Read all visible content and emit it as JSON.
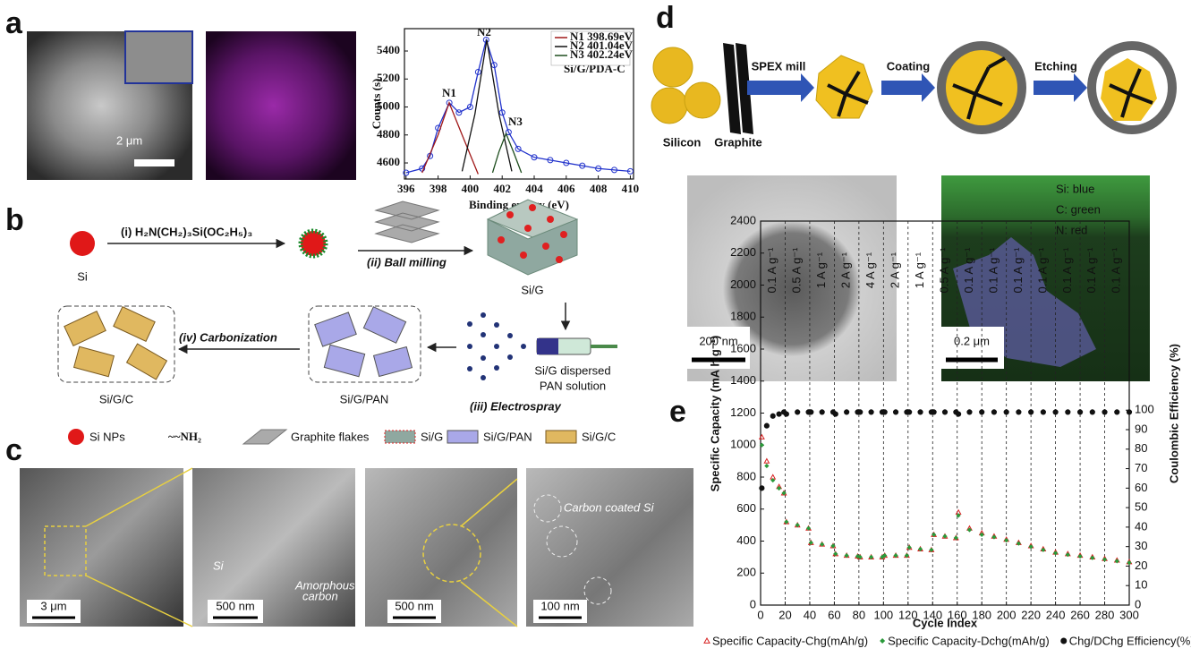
{
  "panel_a": {
    "label": "a",
    "scale_bar": "2 μm",
    "xps": {
      "type": "line",
      "xlim": [
        395.9,
        410.2
      ],
      "ylim": [
        4485,
        5560
      ],
      "xticks": [
        396,
        398,
        400,
        402,
        404,
        406,
        408,
        410
      ],
      "yticks": [
        4600,
        4800,
        5000,
        5200,
        5400
      ],
      "xlabel": "Binding energy (eV)",
      "ylabel": "Counts (s)",
      "inset_text": "Si/G/PDA-C",
      "annotations": [
        "N1",
        "N2",
        "N3"
      ],
      "legend": "upper right",
      "series": [
        {
          "color": "#2233cc",
          "marker": "circle",
          "line": true,
          "x": [
            396,
            397,
            397.5,
            398,
            398.7,
            399.3,
            400,
            400.5,
            401,
            401.5,
            402,
            402.4,
            403,
            404,
            405,
            406,
            407,
            408,
            409,
            410
          ],
          "values": [
            4530,
            4560,
            4650,
            4850,
            5030,
            4960,
            5000,
            5250,
            5480,
            5300,
            4960,
            4820,
            4700,
            4640,
            4620,
            4600,
            4580,
            4560,
            4550,
            4540
          ]
        },
        {
          "name": "N1 398.69eV",
          "color": "#a01818",
          "line": true,
          "x": [
            397,
            398,
            398.69,
            399.5,
            400.5
          ],
          "values": [
            4530,
            4800,
            5030,
            4800,
            4520
          ]
        },
        {
          "name": "N2 401.04eV",
          "color": "#111111",
          "line": true,
          "x": [
            399.5,
            400.3,
            401.04,
            401.8,
            402.6
          ],
          "values": [
            4540,
            4950,
            5480,
            4950,
            4540
          ]
        },
        {
          "name": "N3 402.24eV",
          "color": "#1d4d1d",
          "line": true,
          "x": [
            401.4,
            401.8,
            402.24,
            402.7,
            403.2
          ],
          "values": [
            4530,
            4680,
            4810,
            4680,
            4530
          ]
        }
      ]
    }
  },
  "panel_b": {
    "label": "b",
    "step_1": "(i) H₂N(CH₂)₃Si(OC₂H₅)₃",
    "step_2": "(ii) Ball milling",
    "step_3": "(iii) Electrospray",
    "step_4": "(iv) Carbonization",
    "si": "Si",
    "si_g": "Si/G",
    "solution": [
      "Si/G dispersed",
      "PAN solution"
    ],
    "si_g_pan": "Si/G/PAN",
    "si_g_c": "Si/G/C",
    "legend": [
      "Si NPs",
      "~~NH₂",
      "Graphite flakes",
      "Si/G",
      "Si/G/PAN",
      "Si/G/C"
    ]
  },
  "panel_c": {
    "label": "c",
    "scale_bars": [
      "3 μm",
      "500 nm",
      "500 nm",
      "100 nm"
    ],
    "si": "Si",
    "amorphous": [
      "Amorphous",
      "carbon"
    ],
    "coated": "Carbon coated Si"
  },
  "panel_d": {
    "label": "d",
    "silicon": "Silicon",
    "graphite": "Graphite",
    "steps": [
      "SPEX mill",
      "Coating",
      "Etching"
    ],
    "scale_bars": [
      "200 nm",
      "0.2 μm"
    ],
    "map_legend": [
      "Si: blue",
      "C: green",
      "N: red"
    ]
  },
  "panel_e": {
    "label": "e",
    "chart": {
      "type": "scatter",
      "xlim": [
        0,
        300
      ],
      "ylim": [
        0,
        2400
      ],
      "y2lim": [
        0,
        197
      ],
      "xticks": [
        0,
        20,
        40,
        60,
        80,
        100,
        120,
        140,
        160,
        180,
        200,
        220,
        240,
        260,
        280,
        300
      ],
      "yticks": [
        0,
        200,
        400,
        600,
        800,
        1000,
        1200,
        1400,
        1600,
        1800,
        2000,
        2200,
        2400
      ],
      "y2ticks": [
        0,
        10,
        20,
        30,
        40,
        50,
        60,
        70,
        80,
        90,
        100
      ],
      "xlabel": "Cycle Index",
      "ylabel": "Specific Capacity (mA h g⁻¹)",
      "y2label": "Coulombic Efficiency (%)",
      "grid_x": "dashed",
      "legend": "below",
      "rate_labels": [
        "0.1 A g⁻¹",
        "0.5 A g⁻¹",
        "1 A g⁻¹",
        "2 A g⁻¹",
        "4 A g⁻¹",
        "2 A g⁻¹",
        "1 A g⁻¹",
        "0.5 A g⁻¹",
        "0.1 A g⁻¹",
        "0.1 A g⁻¹",
        "0.1 A g⁻¹",
        "0.1 A g⁻¹",
        "0.1 A g⁻¹",
        "0.1 A g⁻¹",
        "0.1 A g⁻¹"
      ],
      "x": [
        1,
        5,
        10,
        15,
        19,
        21,
        30,
        39,
        41,
        50,
        59,
        61,
        70,
        79,
        81,
        90,
        99,
        101,
        110,
        119,
        121,
        130,
        139,
        141,
        150,
        159,
        161,
        170,
        180,
        190,
        200,
        210,
        220,
        230,
        240,
        250,
        260,
        270,
        280,
        290,
        300
      ],
      "series": [
        {
          "name": "Specific Capacity-Chg(mAh/g)",
          "color": "#d62020",
          "marker": "triangle",
          "values": [
            1050,
            900,
            800,
            740,
            700,
            520,
            500,
            480,
            390,
            380,
            370,
            320,
            310,
            305,
            300,
            300,
            300,
            310,
            310,
            310,
            360,
            350,
            345,
            440,
            430,
            420,
            580,
            480,
            450,
            430,
            410,
            390,
            370,
            350,
            330,
            320,
            310,
            300,
            290,
            280,
            270
          ]
        },
        {
          "name": "Specific Capacity-Dchg(mAh/g)",
          "color": "#2a9a3a",
          "marker": "diamond",
          "values": [
            1000,
            870,
            780,
            730,
            700,
            520,
            500,
            480,
            390,
            380,
            370,
            320,
            310,
            305,
            300,
            300,
            300,
            310,
            310,
            310,
            360,
            350,
            345,
            440,
            430,
            420,
            560,
            470,
            440,
            425,
            405,
            385,
            365,
            345,
            325,
            315,
            305,
            295,
            285,
            275,
            265
          ]
        },
        {
          "name": "Chg/DChg Efficiency(%)",
          "color": "#111111",
          "marker": "circle",
          "axis": "y2",
          "values": [
            60,
            92,
            97,
            98,
            99,
            98,
            99,
            99,
            99,
            99,
            99,
            98,
            99,
            99,
            99,
            99,
            99,
            99,
            99,
            99,
            99,
            99,
            99,
            99,
            99,
            99,
            98,
            99,
            99,
            99,
            99,
            99,
            99,
            99,
            99,
            99,
            99,
            99,
            99,
            99,
            99
          ]
        }
      ]
    }
  }
}
